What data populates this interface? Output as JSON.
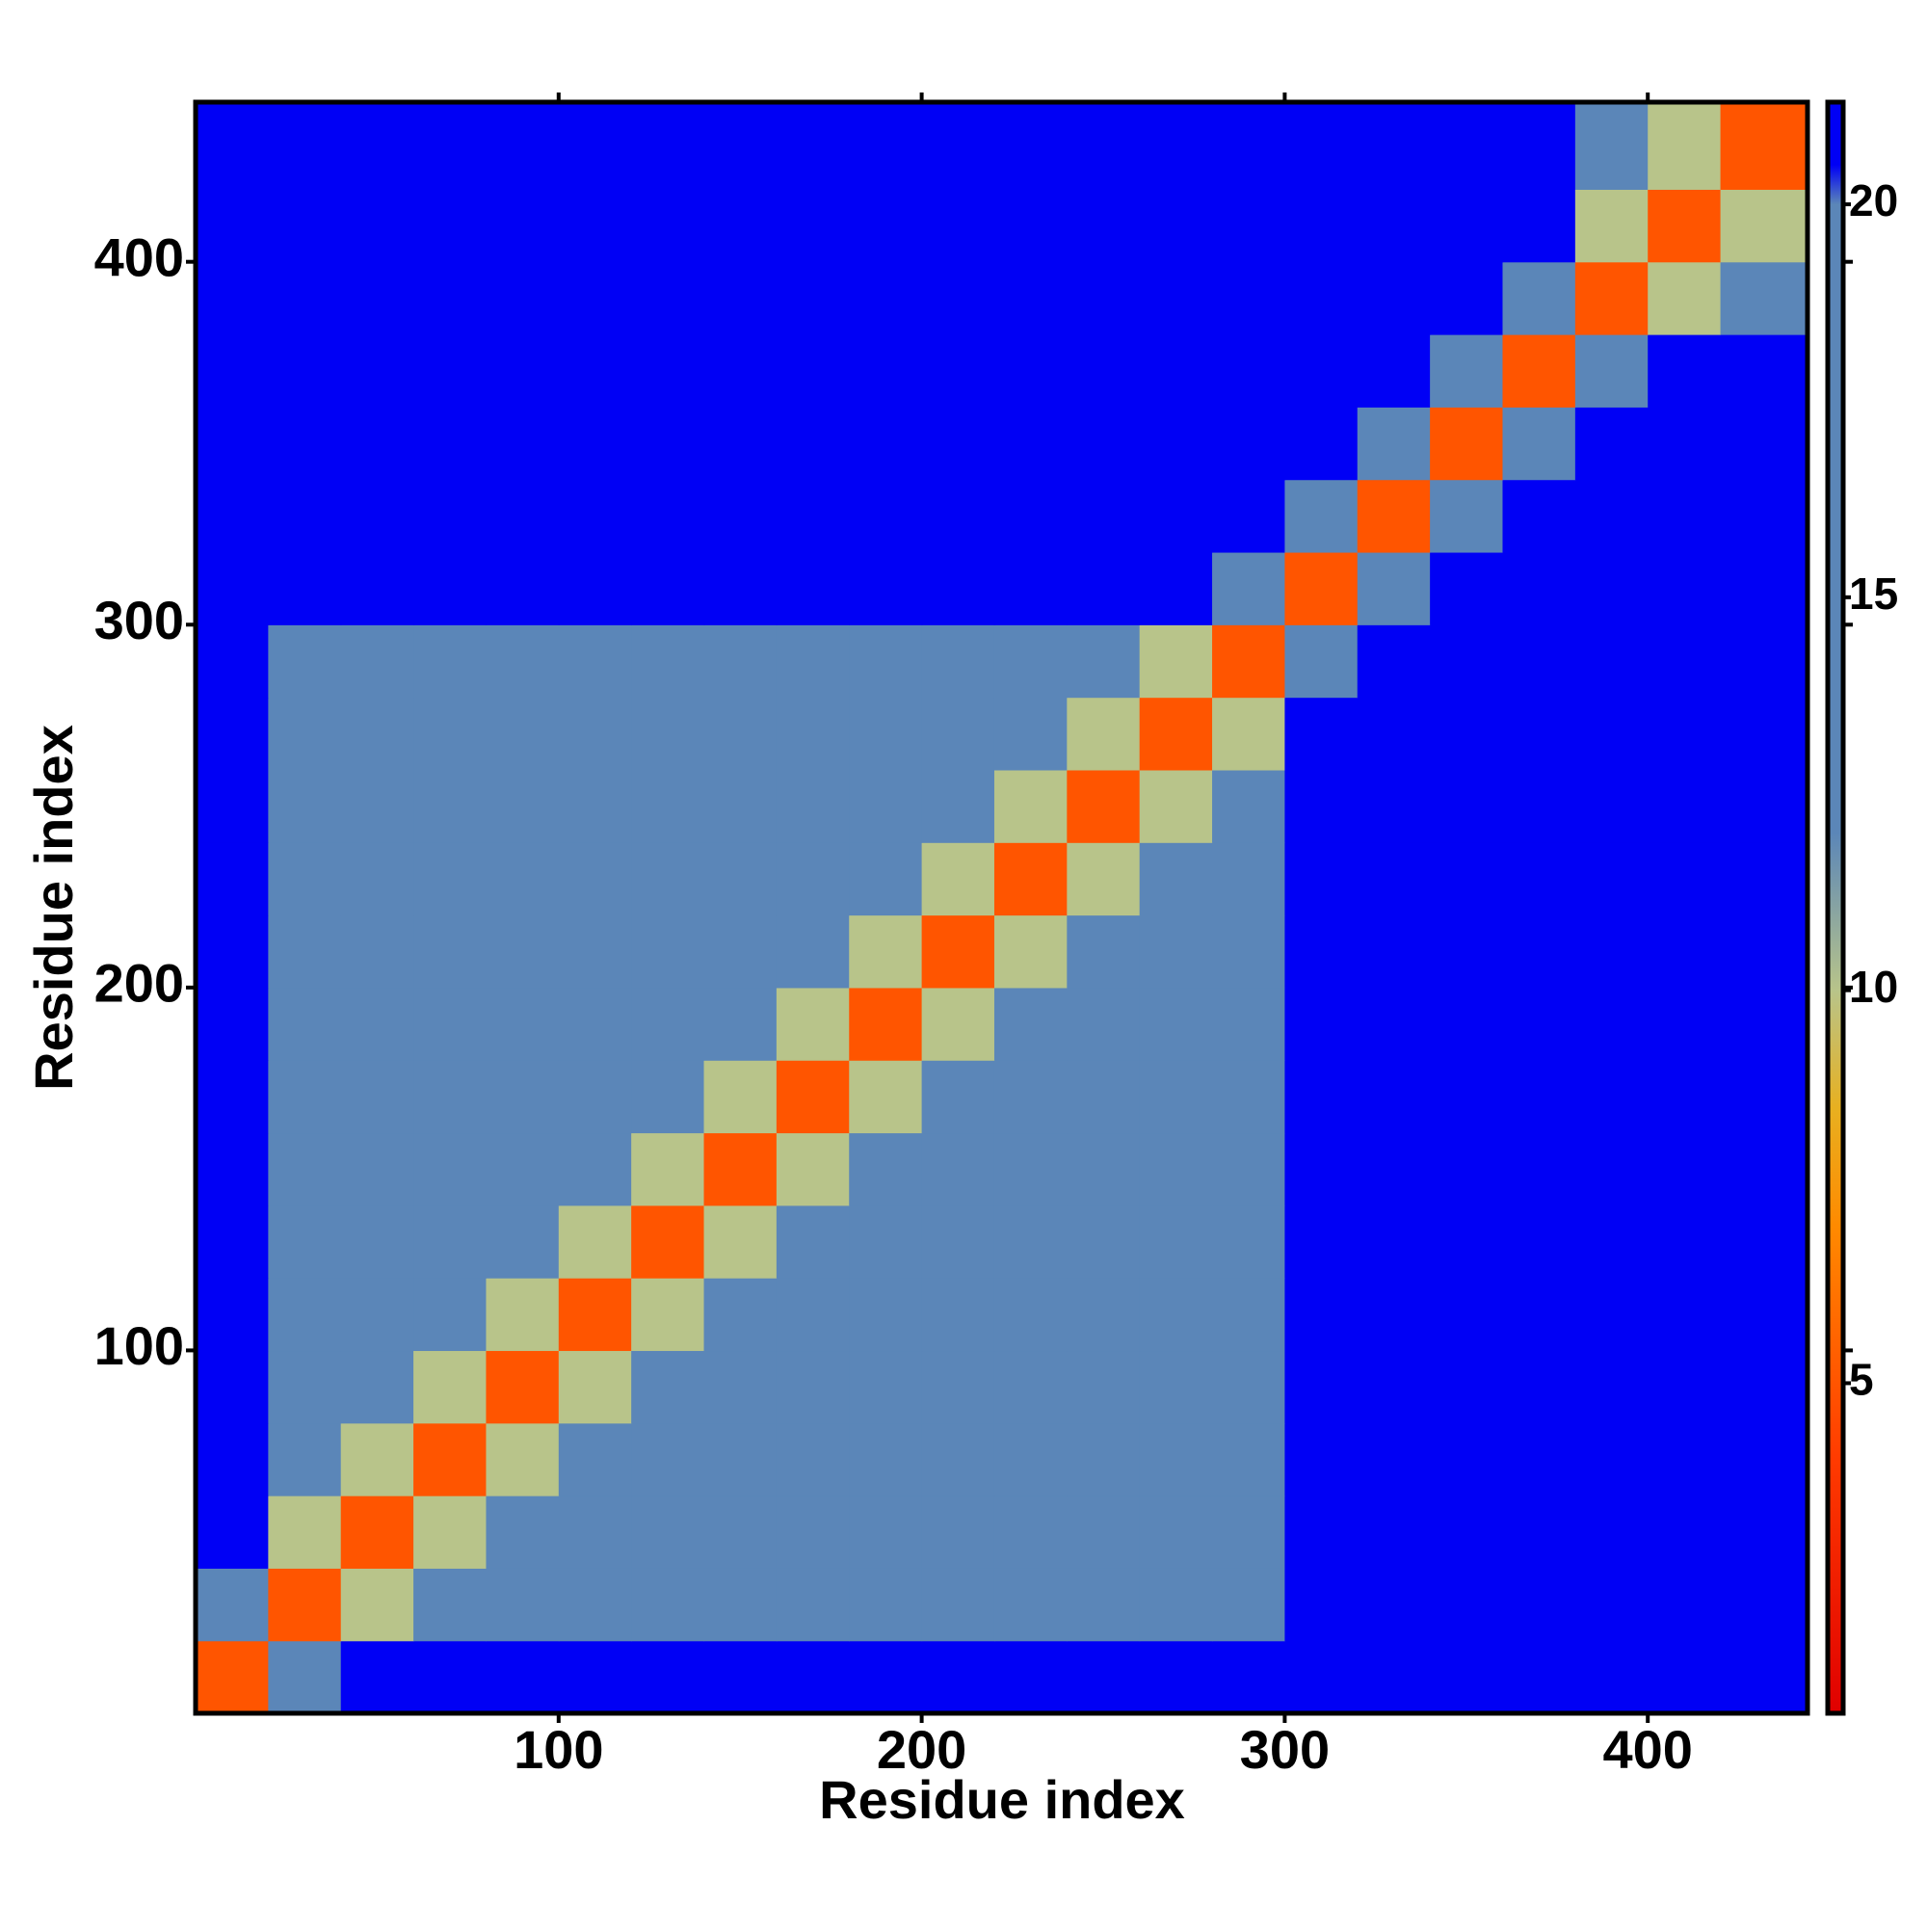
{
  "chart_data": {
    "type": "heatmap",
    "xlabel": "Residue index",
    "ylabel": "Residue index",
    "xlim": [
      0,
      444
    ],
    "ylim": [
      0,
      444
    ],
    "xticks": [
      100,
      200,
      300,
      400
    ],
    "yticks": [
      100,
      200,
      300,
      400
    ],
    "x_edges": [
      0,
      20,
      40,
      60,
      80,
      100,
      120,
      140,
      160,
      180,
      200,
      220,
      240,
      260,
      280,
      300,
      320,
      340,
      360,
      380,
      400,
      420,
      444
    ],
    "y_edges": [
      0,
      20,
      40,
      60,
      80,
      100,
      120,
      140,
      160,
      180,
      200,
      220,
      240,
      260,
      280,
      300,
      320,
      340,
      360,
      380,
      400,
      420,
      444
    ],
    "z": [
      [
        5,
        12,
        21,
        21,
        21,
        21,
        21,
        21,
        21,
        21,
        21,
        21,
        21,
        21,
        21,
        21,
        21,
        21,
        21,
        21,
        21,
        21
      ],
      [
        12,
        5,
        10,
        14,
        14,
        14,
        14,
        14,
        14,
        14,
        14,
        14,
        14,
        14,
        16,
        21,
        21,
        21,
        21,
        21,
        21,
        21
      ],
      [
        21,
        10,
        5,
        10,
        14,
        14,
        14,
        14,
        14,
        14,
        14,
        14,
        14,
        14,
        14,
        21,
        21,
        21,
        21,
        21,
        21,
        21
      ],
      [
        21,
        14,
        10,
        5,
        10,
        14,
        14,
        14,
        14,
        14,
        14,
        14,
        14,
        14,
        14,
        21,
        21,
        21,
        21,
        21,
        21,
        21
      ],
      [
        21,
        14,
        14,
        10,
        5,
        10,
        14,
        14,
        14,
        14,
        14,
        14,
        14,
        14,
        14,
        21,
        21,
        21,
        21,
        21,
        21,
        21
      ],
      [
        21,
        14,
        14,
        14,
        10,
        5,
        10,
        14,
        14,
        14,
        14,
        14,
        14,
        14,
        14,
        21,
        21,
        21,
        21,
        21,
        21,
        21
      ],
      [
        21,
        14,
        14,
        14,
        14,
        10,
        5,
        10,
        14,
        14,
        14,
        14,
        14,
        14,
        14,
        21,
        21,
        21,
        21,
        21,
        21,
        21
      ],
      [
        21,
        14,
        14,
        14,
        14,
        14,
        10,
        5,
        10,
        14,
        14,
        14,
        14,
        14,
        14,
        21,
        21,
        21,
        21,
        21,
        21,
        21
      ],
      [
        21,
        14,
        14,
        14,
        14,
        14,
        14,
        10,
        5,
        10,
        14,
        14,
        14,
        14,
        14,
        21,
        21,
        21,
        21,
        21,
        21,
        21
      ],
      [
        21,
        14,
        14,
        14,
        14,
        14,
        14,
        14,
        10,
        5,
        10,
        14,
        14,
        14,
        14,
        21,
        21,
        21,
        21,
        21,
        21,
        21
      ],
      [
        21,
        14,
        14,
        14,
        14,
        14,
        14,
        14,
        14,
        10,
        5,
        10,
        14,
        14,
        14,
        21,
        21,
        21,
        21,
        21,
        21,
        21
      ],
      [
        21,
        14,
        14,
        14,
        14,
        14,
        14,
        14,
        14,
        14,
        10,
        5,
        10,
        14,
        14,
        21,
        21,
        21,
        21,
        21,
        21,
        21
      ],
      [
        21,
        14,
        14,
        14,
        14,
        14,
        14,
        14,
        14,
        14,
        14,
        10,
        5,
        10,
        14,
        21,
        21,
        21,
        21,
        21,
        21,
        21
      ],
      [
        21,
        14,
        14,
        14,
        14,
        14,
        14,
        14,
        14,
        14,
        14,
        14,
        10,
        5,
        10,
        21,
        21,
        21,
        21,
        21,
        21,
        21
      ],
      [
        21,
        16,
        14,
        14,
        14,
        14,
        14,
        14,
        14,
        14,
        14,
        14,
        14,
        10,
        5,
        12,
        21,
        21,
        21,
        21,
        21,
        21
      ],
      [
        21,
        21,
        21,
        21,
        21,
        21,
        21,
        21,
        21,
        21,
        21,
        21,
        21,
        21,
        12,
        5,
        12,
        21,
        21,
        21,
        21,
        21
      ],
      [
        21,
        21,
        21,
        21,
        21,
        21,
        21,
        21,
        21,
        21,
        21,
        21,
        21,
        21,
        21,
        12,
        5,
        12,
        21,
        21,
        21,
        21
      ],
      [
        21,
        21,
        21,
        21,
        21,
        21,
        21,
        21,
        21,
        21,
        21,
        21,
        21,
        21,
        21,
        21,
        12,
        5,
        12,
        21,
        21,
        21
      ],
      [
        21,
        21,
        21,
        21,
        21,
        21,
        21,
        21,
        21,
        21,
        21,
        21,
        21,
        21,
        21,
        21,
        21,
        12,
        5,
        12,
        21,
        21
      ],
      [
        21,
        21,
        21,
        21,
        21,
        21,
        21,
        21,
        21,
        21,
        21,
        21,
        21,
        21,
        21,
        21,
        21,
        21,
        12,
        5,
        10,
        14
      ],
      [
        21,
        21,
        21,
        21,
        21,
        21,
        21,
        21,
        21,
        21,
        21,
        21,
        21,
        21,
        21,
        21,
        21,
        21,
        21,
        10,
        5,
        10
      ],
      [
        21,
        21,
        21,
        21,
        21,
        21,
        21,
        21,
        21,
        21,
        21,
        21,
        21,
        21,
        21,
        21,
        21,
        21,
        21,
        14,
        10,
        5
      ]
    ],
    "clim": [
      0.8,
      21.3
    ],
    "cticks": [
      5,
      10,
      15,
      20
    ],
    "colorscale": [
      {
        "value": 0.8,
        "color": "#e00000"
      },
      {
        "value": 4,
        "color": "#ff3a00"
      },
      {
        "value": 7,
        "color": "#ff8a00"
      },
      {
        "value": 8.5,
        "color": "#e8b020"
      },
      {
        "value": 10,
        "color": "#b8c48a"
      },
      {
        "value": 12,
        "color": "#5b86b8"
      },
      {
        "value": 20,
        "color": "#5b86b8"
      },
      {
        "value": 20.5,
        "color": "#0000f5"
      },
      {
        "value": 21.3,
        "color": "#0000f5"
      }
    ]
  }
}
